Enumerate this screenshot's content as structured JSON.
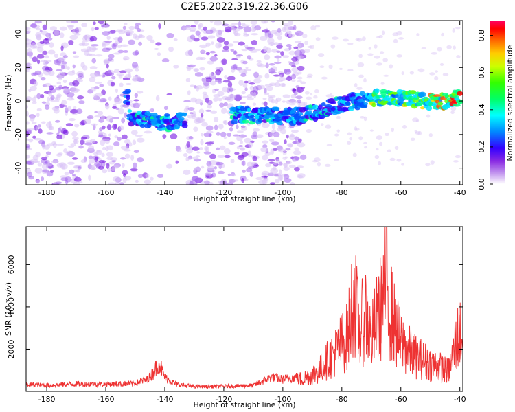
{
  "title": "C2E5.2022.319.22.36.G06",
  "chart_data": [
    {
      "type": "heatmap",
      "xlabel": "Height of straight line (km)",
      "ylabel": "Frequency (Hz)",
      "xlim": [
        -187,
        -39
      ],
      "ylim": [
        -50,
        48
      ],
      "x_ticks": [
        -180,
        -160,
        -140,
        -120,
        -100,
        -80,
        -60,
        -40
      ],
      "y_ticks": [
        -40,
        -20,
        0,
        20,
        40
      ],
      "colorbar": {
        "label": "Normalized spectral amplitude",
        "range": [
          0.0,
          0.88
        ],
        "ticks": [
          "0.0",
          "0.2",
          "0.4",
          "0.6",
          "0.8"
        ]
      },
      "ridge": [
        {
          "x": -152,
          "y": -9
        },
        {
          "x": -145,
          "y": -12
        },
        {
          "x": -138,
          "y": -13
        },
        {
          "x": -135,
          "y": -11
        },
        {
          "x": -115,
          "y": -8
        },
        {
          "x": -105,
          "y": -9
        },
        {
          "x": -95,
          "y": -9
        },
        {
          "x": -88,
          "y": -6
        },
        {
          "x": -80,
          "y": -2
        },
        {
          "x": -70,
          "y": 2
        },
        {
          "x": -60,
          "y": 2
        },
        {
          "x": -52,
          "y": 0
        },
        {
          "x": -45,
          "y": 0
        },
        {
          "x": -40,
          "y": 2
        }
      ],
      "gap_x": [
        -148,
        -133
      ]
    },
    {
      "type": "line",
      "xlabel": "Height of straight line (km)",
      "ylabel": "SNR (10 * v/v)",
      "xlim": [
        -187,
        -39
      ],
      "ylim": [
        0,
        7800
      ],
      "x_ticks": [
        -180,
        -160,
        -140,
        -120,
        -100,
        -80,
        -60,
        -40
      ],
      "y_ticks": [
        2000,
        4000,
        6000
      ],
      "color": "#ee3333",
      "series": [
        {
          "x": [
            -187,
            -180,
            -170,
            -160,
            -150,
            -146,
            -144,
            -142,
            -140,
            -136,
            -130,
            -120,
            -110,
            -104,
            -100,
            -96,
            -92,
            -88,
            -86,
            -84,
            -82,
            -80,
            -78,
            -76,
            -74,
            -72,
            -70,
            -68,
            -66,
            -65,
            -64,
            -62,
            -60,
            -58,
            -56,
            -54,
            -52,
            -50,
            -48,
            -46,
            -44,
            -43,
            -42,
            -41,
            -40,
            -39
          ],
          "y": [
            350,
            300,
            380,
            360,
            400,
            600,
            900,
            1450,
            700,
            350,
            250,
            250,
            300,
            700,
            600,
            700,
            900,
            1300,
            1800,
            2200,
            2600,
            3200,
            3600,
            6500,
            3800,
            5200,
            3400,
            4800,
            6000,
            7700,
            5800,
            4200,
            3200,
            2800,
            2400,
            2200,
            2000,
            1800,
            1700,
            1500,
            1300,
            1800,
            2600,
            3400,
            3800,
            3600
          ]
        }
      ]
    }
  ]
}
